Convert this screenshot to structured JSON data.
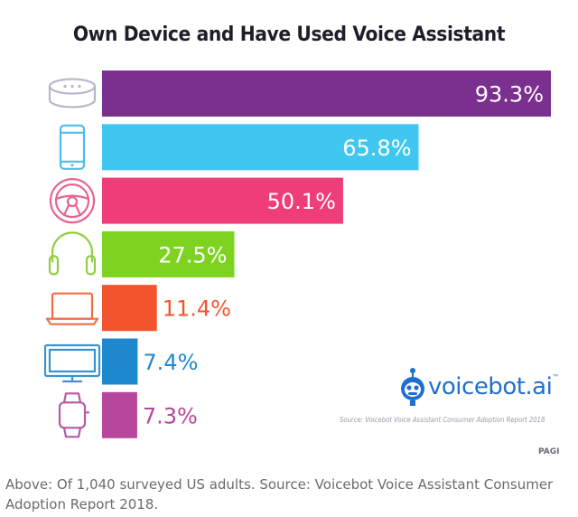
{
  "chart_data": {
    "type": "bar",
    "orientation": "horizontal",
    "title": "Own Device and Have Used Voice Assistant",
    "categories": [
      "smart-speaker",
      "smartphone",
      "car",
      "headphones",
      "computer",
      "tv",
      "smartwatch"
    ],
    "values": [
      93.3,
      65.8,
      50.1,
      27.5,
      11.4,
      7.4,
      7.3
    ],
    "labels": [
      "93.3%",
      "65.8%",
      "50.1%",
      "27.5%",
      "11.4%",
      "7.4%",
      "7.3%"
    ],
    "colors": [
      "#7b2f8e",
      "#3fc7ef",
      "#ee3d78",
      "#7ed321",
      "#f2542d",
      "#1e88cf",
      "#b7469d"
    ],
    "icon_colors": [
      "#b9b6c9",
      "#4dbde8",
      "#e9638f",
      "#8fce3e",
      "#f06d45",
      "#3a92cf",
      "#b55aa6"
    ],
    "label_inside": [
      true,
      true,
      true,
      true,
      false,
      false,
      false
    ],
    "xlim": [
      0,
      100
    ],
    "grid": false,
    "legend": "none"
  },
  "logo": {
    "name": "voicebot",
    "suffix": ".ai",
    "tm": "™"
  },
  "source": "Source: Voicebot Voice Assistant Consumer Adoption Report 2018",
  "brand": "PAGI",
  "caption": "Above: Of 1,040 surveyed US adults. Source: Voicebot Voice Assistant Consumer Adoption Report 2018."
}
